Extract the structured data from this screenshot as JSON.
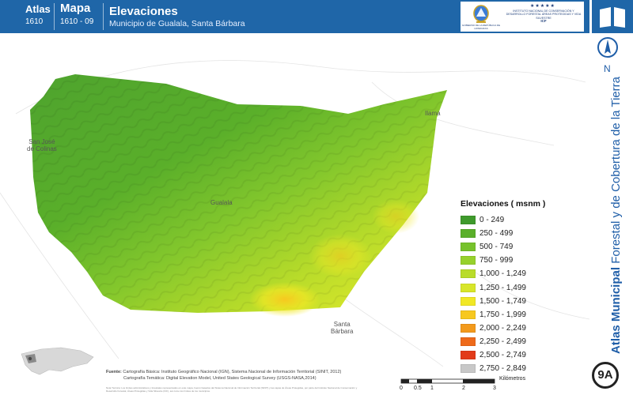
{
  "header": {
    "atlas_label": "Atlas",
    "atlas_code": "1610",
    "mapa_label": "Mapa",
    "mapa_code": "1610 - 09",
    "title": "Elevaciones",
    "subtitle": "Municipio de Gualala, Santa Bárbara",
    "logo_gov_text": "GOBIERNO DE LA REPÚBLICA DE HONDURAS",
    "logo_icf_text": "INSTITUTO NACIONAL DE CONSERVACIÓN Y DESARROLLO FORESTAL ÁREAS PROTEGIDAS Y VIDA SILVESTRE",
    "logo_icf_abbr": "ICF",
    "logo_stars": "★★★★★"
  },
  "sidebar": {
    "north_label": "N",
    "book_icon": "open-book-icon",
    "vertical_title_bold": "Atlas Municipal",
    "vertical_title_rest": " Forestal y de Cobertura de la Tierra",
    "badge": "9A"
  },
  "places": {
    "san_jose": "San José\nde Colinas",
    "ilama": "Ilama",
    "gualala": "Gualala",
    "santa_barbara": "Santa\nBárbara"
  },
  "legend": {
    "title": "Elevaciones ( msnm )",
    "items": [
      {
        "label": "0 - 249",
        "color": "#3f9a2c"
      },
      {
        "label": "250 - 499",
        "color": "#5aaf2a"
      },
      {
        "label": "500 - 749",
        "color": "#77c22c"
      },
      {
        "label": "750 - 999",
        "color": "#97d12c"
      },
      {
        "label": "1,000 - 1,249",
        "color": "#b9dc2a"
      },
      {
        "label": "1,250 - 1,499",
        "color": "#d8e62a"
      },
      {
        "label": "1,500 - 1,749",
        "color": "#f1e825"
      },
      {
        "label": "1,750 - 1,999",
        "color": "#f7c81f"
      },
      {
        "label": "2,000 - 2,249",
        "color": "#f39a1c"
      },
      {
        "label": "2,250 - 2,499",
        "color": "#ee6a1a"
      },
      {
        "label": "2,500 - 2,749",
        "color": "#e23a19"
      },
      {
        "label": "2,750 - 2,849",
        "color": "#c8c8c8"
      }
    ]
  },
  "footer": {
    "source_label": "Fuente:",
    "source_line1": "Cartografía Básica: Instituto Geográfico Nacional (IGN), Sistema Nacional de Información Territorial (SINIT, 2012)",
    "source_line2": "Cartografía Temática: Digital Elevation Model, United States Geological Survey (USGS-NASA,2014)",
    "note": "Nota Técnica: Los límites administrativos y forestales representados en este mapa, fueron basados del Sistema Nacional de Información Territorial (SINIT) y las capas de Áreas Protegidas, por parte del Instituto Nacional de Conservación y Desarrollo Forestal, Áreas Protegidas y Vida Silvestre (ICF), así como los límites de los municipios.",
    "scale_ticks": [
      "0",
      "0.5",
      "1",
      "2",
      "3"
    ],
    "scale_unit": "Kilómetros"
  }
}
